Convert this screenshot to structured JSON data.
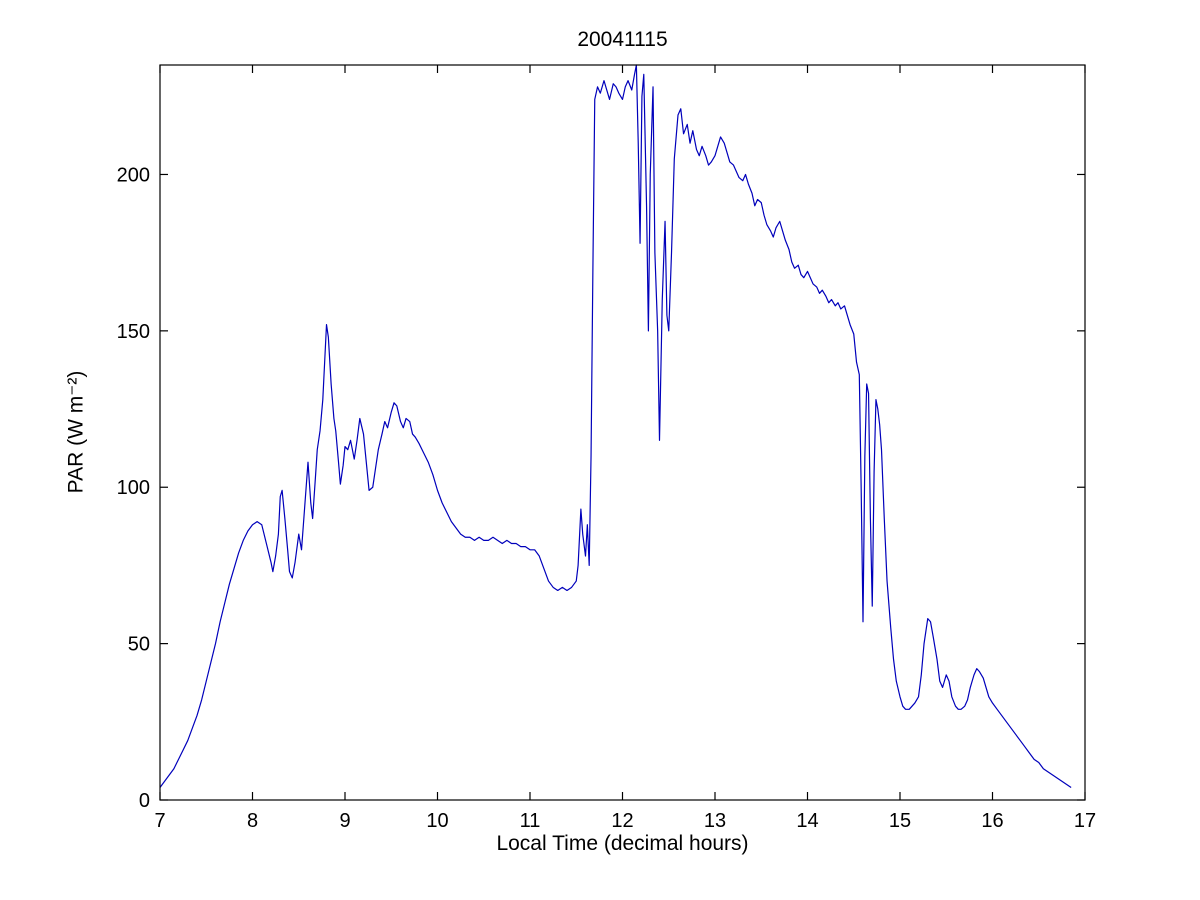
{
  "chart_data": {
    "type": "line",
    "title": "20041115",
    "xlabel": "Local Time (decimal hours)",
    "ylabel": "PAR (W m⁻²)",
    "xlim": [
      7,
      17
    ],
    "ylim": [
      0,
      235
    ],
    "xticks": [
      7,
      8,
      9,
      10,
      11,
      12,
      13,
      14,
      15,
      16,
      17
    ],
    "yticks": [
      0,
      50,
      100,
      150,
      200
    ],
    "grid": false,
    "legend_position": "none",
    "line_color": "#0000bb",
    "axis_color": "#000000",
    "background_color": "#ffffff",
    "series": [
      {
        "name": "PAR",
        "x": [
          7.0,
          7.05,
          7.1,
          7.15,
          7.2,
          7.25,
          7.3,
          7.35,
          7.4,
          7.45,
          7.5,
          7.55,
          7.6,
          7.65,
          7.7,
          7.75,
          7.8,
          7.85,
          7.9,
          7.95,
          8.0,
          8.05,
          8.1,
          8.15,
          8.2,
          8.22,
          8.25,
          8.28,
          8.3,
          8.32,
          8.35,
          8.38,
          8.4,
          8.43,
          8.46,
          8.5,
          8.53,
          8.56,
          8.6,
          8.63,
          8.65,
          8.68,
          8.7,
          8.73,
          8.76,
          8.78,
          8.8,
          8.82,
          8.85,
          8.88,
          8.9,
          8.93,
          8.95,
          8.98,
          9.0,
          9.03,
          9.06,
          9.1,
          9.13,
          9.16,
          9.2,
          9.23,
          9.26,
          9.3,
          9.33,
          9.36,
          9.4,
          9.43,
          9.46,
          9.5,
          9.53,
          9.56,
          9.6,
          9.63,
          9.66,
          9.7,
          9.73,
          9.76,
          9.8,
          9.85,
          9.9,
          9.95,
          10.0,
          10.05,
          10.1,
          10.15,
          10.2,
          10.25,
          10.3,
          10.35,
          10.4,
          10.45,
          10.5,
          10.55,
          10.6,
          10.65,
          10.7,
          10.75,
          10.8,
          10.85,
          10.9,
          10.95,
          11.0,
          11.05,
          11.1,
          11.15,
          11.2,
          11.25,
          11.3,
          11.35,
          11.4,
          11.45,
          11.5,
          11.52,
          11.55,
          11.57,
          11.6,
          11.62,
          11.64,
          11.66,
          11.68,
          11.7,
          11.73,
          11.76,
          11.8,
          11.83,
          11.86,
          11.9,
          11.93,
          11.96,
          12.0,
          12.03,
          12.06,
          12.1,
          12.13,
          12.15,
          12.17,
          12.19,
          12.21,
          12.23,
          12.26,
          12.28,
          12.3,
          12.33,
          12.35,
          12.38,
          12.4,
          12.43,
          12.46,
          12.48,
          12.5,
          12.53,
          12.56,
          12.6,
          12.63,
          12.66,
          12.7,
          12.73,
          12.76,
          12.8,
          12.83,
          12.86,
          12.9,
          12.93,
          12.96,
          13.0,
          13.03,
          13.06,
          13.1,
          13.13,
          13.16,
          13.2,
          13.23,
          13.26,
          13.3,
          13.33,
          13.36,
          13.4,
          13.43,
          13.46,
          13.5,
          13.53,
          13.56,
          13.6,
          13.63,
          13.66,
          13.7,
          13.73,
          13.76,
          13.8,
          13.83,
          13.86,
          13.9,
          13.93,
          13.96,
          14.0,
          14.03,
          14.06,
          14.1,
          14.13,
          14.16,
          14.2,
          14.23,
          14.26,
          14.3,
          14.33,
          14.36,
          14.4,
          14.43,
          14.46,
          14.5,
          14.53,
          14.56,
          14.58,
          14.6,
          14.62,
          14.64,
          14.66,
          14.68,
          14.7,
          14.72,
          14.74,
          14.76,
          14.78,
          14.8,
          14.83,
          14.86,
          14.9,
          14.93,
          14.96,
          15.0,
          15.03,
          15.06,
          15.1,
          15.13,
          15.16,
          15.2,
          15.23,
          15.26,
          15.3,
          15.33,
          15.36,
          15.4,
          15.43,
          15.46,
          15.5,
          15.53,
          15.56,
          15.6,
          15.63,
          15.66,
          15.7,
          15.73,
          15.76,
          15.8,
          15.83,
          15.86,
          15.9,
          15.93,
          15.96,
          16.0,
          16.05,
          16.1,
          16.15,
          16.2,
          16.25,
          16.3,
          16.35,
          16.4,
          16.45,
          16.5,
          16.55,
          16.6,
          16.65,
          16.7,
          16.75,
          16.8,
          16.85
        ],
        "y": [
          4,
          6,
          8,
          10,
          13,
          16,
          19,
          23,
          27,
          32,
          38,
          44,
          50,
          57,
          63,
          69,
          74,
          79,
          83,
          86,
          88,
          89,
          88,
          82,
          76,
          73,
          78,
          85,
          97,
          99,
          90,
          80,
          73,
          71,
          76,
          85,
          80,
          92,
          108,
          95,
          90,
          103,
          112,
          118,
          128,
          140,
          152,
          148,
          133,
          122,
          118,
          108,
          101,
          107,
          113,
          112,
          115,
          109,
          115,
          122,
          117,
          108,
          99,
          100,
          106,
          112,
          117,
          121,
          119,
          124,
          127,
          126,
          121,
          119,
          122,
          121,
          117,
          116,
          114,
          111,
          108,
          104,
          99,
          95,
          92,
          89,
          87,
          85,
          84,
          84,
          83,
          84,
          83,
          83,
          84,
          83,
          82,
          83,
          82,
          82,
          81,
          81,
          80,
          80,
          78,
          74,
          70,
          68,
          67,
          68,
          67,
          68,
          70,
          75,
          93,
          85,
          78,
          88,
          75,
          110,
          170,
          224,
          228,
          226,
          230,
          227,
          224,
          229,
          228,
          226,
          224,
          228,
          230,
          227,
          232,
          237,
          210,
          178,
          225,
          232,
          190,
          150,
          200,
          228,
          175,
          150,
          115,
          160,
          185,
          155,
          150,
          175,
          205,
          219,
          221,
          213,
          216,
          210,
          214,
          208,
          206,
          209,
          206,
          203,
          204,
          206,
          209,
          212,
          210,
          207,
          204,
          203,
          201,
          199,
          198,
          200,
          197,
          194,
          190,
          192,
          191,
          187,
          184,
          182,
          180,
          183,
          185,
          182,
          179,
          176,
          172,
          170,
          171,
          168,
          167,
          169,
          167,
          165,
          164,
          162,
          163,
          161,
          159,
          160,
          158,
          159,
          157,
          158,
          155,
          152,
          149,
          140,
          136,
          100,
          57,
          110,
          133,
          130,
          90,
          62,
          105,
          128,
          125,
          120,
          112,
          90,
          70,
          55,
          45,
          38,
          33,
          30,
          29,
          29,
          30,
          31,
          33,
          40,
          50,
          58,
          57,
          52,
          45,
          38,
          36,
          40,
          38,
          33,
          30,
          29,
          29,
          30,
          32,
          36,
          40,
          42,
          41,
          39,
          36,
          33,
          31,
          29,
          27,
          25,
          23,
          21,
          19,
          17,
          15,
          13,
          12,
          10,
          9,
          8,
          7,
          6,
          5,
          4
        ]
      }
    ]
  }
}
